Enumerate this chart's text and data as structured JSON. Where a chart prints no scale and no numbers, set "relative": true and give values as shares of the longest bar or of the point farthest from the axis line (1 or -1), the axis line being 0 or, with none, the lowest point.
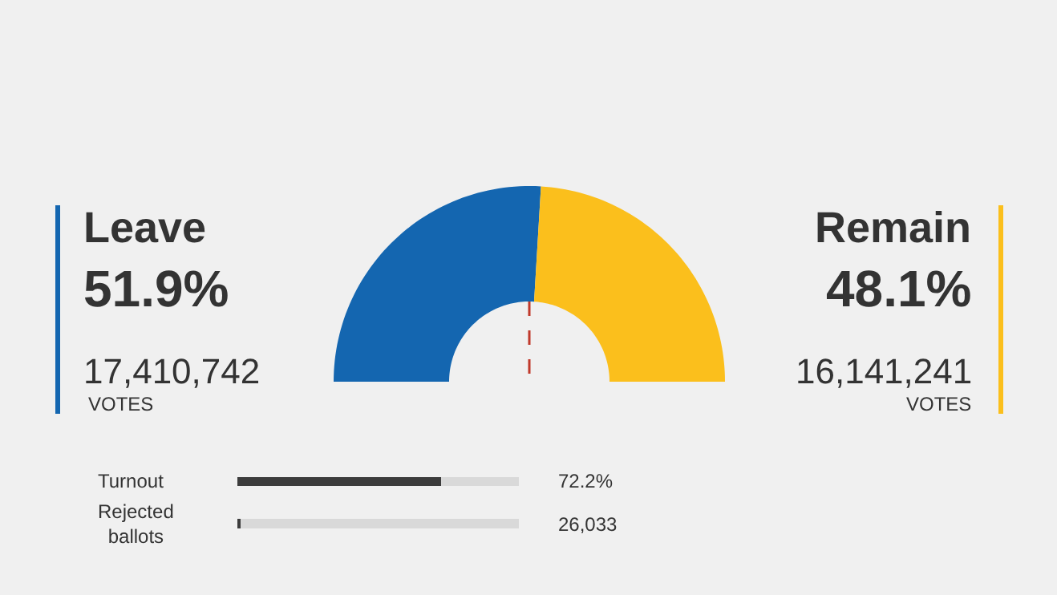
{
  "chart_data": [
    {
      "type": "donut",
      "categories": [
        "Leave",
        "Remain"
      ],
      "values": [
        51.9,
        48.1
      ],
      "colors": [
        "#1466b0",
        "#fbbf1c"
      ],
      "value_labels": [
        "51.9%",
        "48.1%"
      ],
      "annotations": [
        "17,410,742",
        "VOTES",
        "16,141,241",
        "VOTES"
      ],
      "needle": "Leave"
    },
    {
      "type": "bar",
      "orientation": "horizontal",
      "stacked": true,
      "relative": true,
      "categories": [
        "Turnout",
        "Rejected ballots"
      ],
      "series": [
        {
          "color": "#3c3c3c",
          "values": [
            0.722,
            0.01
          ]
        },
        {
          "color": "#d9d9d9",
          "values": [
            0.278,
            0.99
          ]
        }
      ],
      "value_labels": [
        "72.2%",
        "26,033"
      ]
    }
  ]
}
